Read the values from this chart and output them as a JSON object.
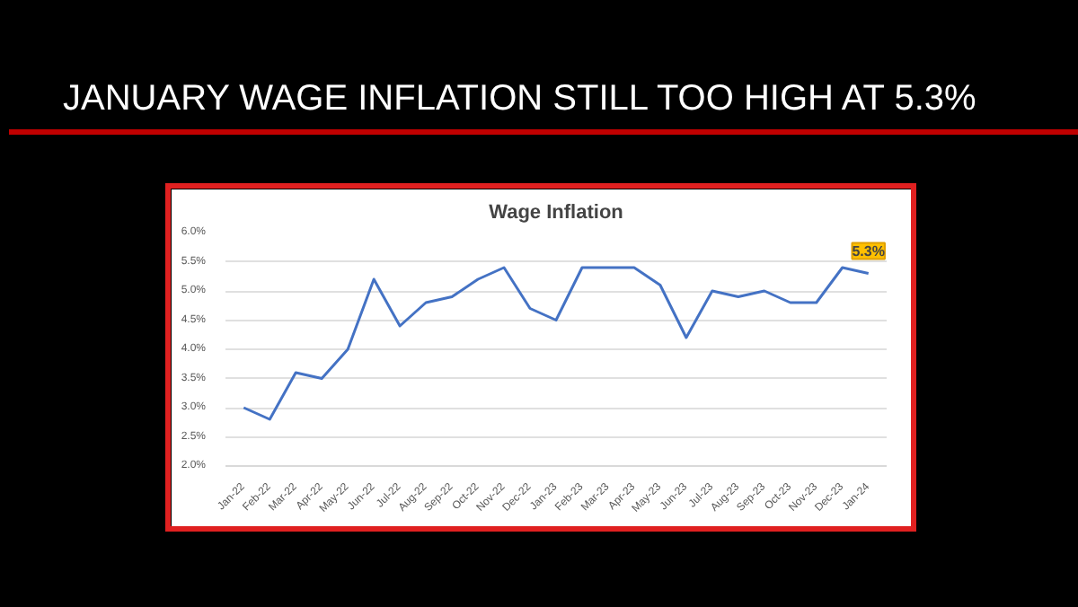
{
  "chart_data": {
    "type": "line",
    "title": "JANUARY WAGE INFLATION STILL TOO HIGH AT 5.3%",
    "subtitle": "Wage Inflation",
    "categories": [
      "Jan-22",
      "Feb-22",
      "Mar-22",
      "Apr-22",
      "May-22",
      "Jun-22",
      "Jul-22",
      "Aug-22",
      "Sep-22",
      "Oct-22",
      "Nov-22",
      "Dec-22",
      "Jan-23",
      "Feb-23",
      "Mar-23",
      "Apr-23",
      "May-23",
      "Jun-23",
      "Jul-23",
      "Aug-23",
      "Sep-23",
      "Oct-23",
      "Nov-23",
      "Dec-23",
      "Jan-24"
    ],
    "values": [
      3.0,
      2.8,
      3.6,
      3.5,
      4.0,
      5.2,
      4.4,
      4.8,
      4.9,
      5.2,
      5.4,
      4.7,
      4.5,
      5.4,
      5.4,
      5.4,
      5.1,
      4.2,
      5.0,
      4.9,
      5.0,
      4.8,
      4.8,
      5.4,
      5.3
    ],
    "value_labels": [
      null,
      null,
      null,
      null,
      null,
      null,
      null,
      null,
      null,
      null,
      null,
      null,
      null,
      null,
      null,
      null,
      null,
      null,
      null,
      null,
      null,
      null,
      null,
      null,
      "5.3%"
    ],
    "color": "#4472c4",
    "ylim": [
      2.0,
      6.0
    ],
    "yticks": [
      {
        "value": 2.0,
        "label": "2.0%"
      },
      {
        "value": 2.5,
        "label": "2.5%"
      },
      {
        "value": 3.0,
        "label": "3.0%"
      },
      {
        "value": 3.5,
        "label": "3.5%"
      },
      {
        "value": 4.0,
        "label": "4.0%"
      },
      {
        "value": 4.5,
        "label": "4.5%"
      },
      {
        "value": 5.0,
        "label": "5.0%"
      },
      {
        "value": 5.5,
        "label": "5.5%"
      },
      {
        "value": 6.0,
        "label": "6.0%"
      }
    ],
    "grid": "y",
    "marker": "none",
    "line_style": "solid"
  }
}
